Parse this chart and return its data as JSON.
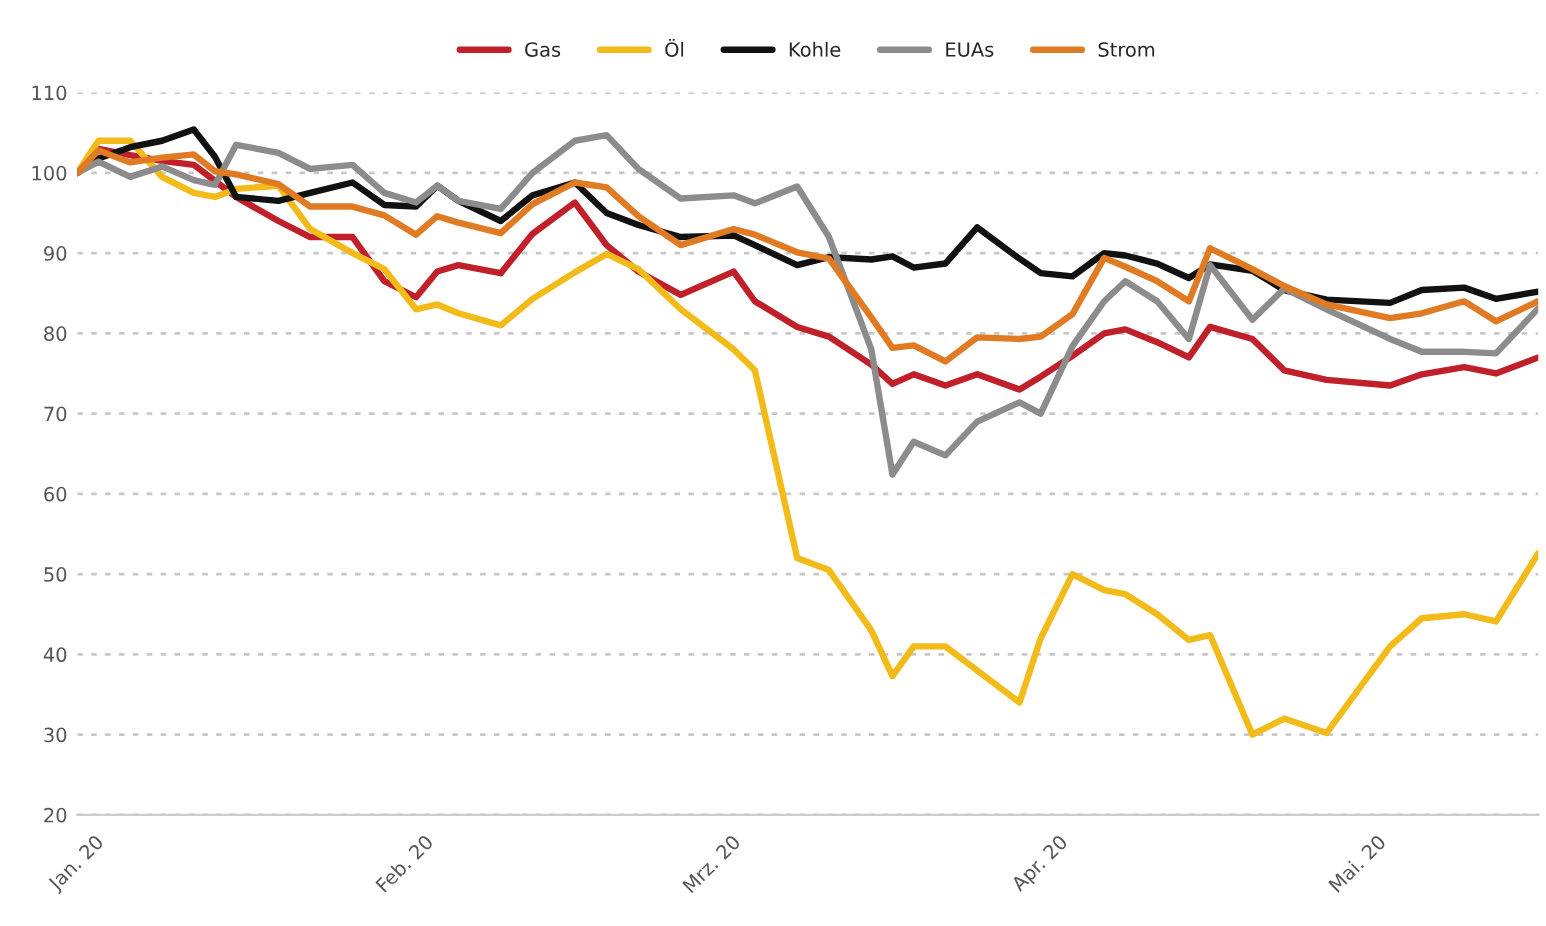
{
  "chart_data": {
    "type": "line",
    "x": [
      "2020-01-01",
      "2020-01-03",
      "2020-01-06",
      "2020-01-09",
      "2020-01-12",
      "2020-01-14",
      "2020-01-16",
      "2020-01-20",
      "2020-01-23",
      "2020-01-27",
      "2020-01-30",
      "2020-02-02",
      "2020-02-04",
      "2020-02-06",
      "2020-02-10",
      "2020-02-13",
      "2020-02-17",
      "2020-02-20",
      "2020-02-23",
      "2020-02-27",
      "2020-03-03",
      "2020-03-05",
      "2020-03-09",
      "2020-03-12",
      "2020-03-16",
      "2020-03-18",
      "2020-03-20",
      "2020-03-23",
      "2020-03-26",
      "2020-03-30",
      "2020-04-01",
      "2020-04-04",
      "2020-04-07",
      "2020-04-09",
      "2020-04-12",
      "2020-04-15",
      "2020-04-17",
      "2020-04-21",
      "2020-04-24",
      "2020-04-28",
      "2020-05-04",
      "2020-05-07",
      "2020-05-11",
      "2020-05-14",
      "2020-05-18"
    ],
    "series": [
      {
        "name": "Gas",
        "color": "#c0202a",
        "values": [
          100,
          103,
          102.2,
          101.5,
          101,
          99,
          97,
          94,
          92,
          92,
          86.5,
          84.5,
          87.7,
          88.5,
          87.5,
          92.4,
          96.3,
          91,
          87.7,
          84.8,
          87.7,
          84,
          80.8,
          79.6,
          76.1,
          73.7,
          74.9,
          73.5,
          74.9,
          73,
          74.6,
          77.2,
          80,
          80.5,
          78.9,
          77,
          80.8,
          79.3,
          75.4,
          74.2,
          73.5,
          74.9,
          75.8,
          75,
          77
        ]
      },
      {
        "name": "Öl",
        "color": "#f2bb1a",
        "values": [
          100,
          104,
          104,
          99.5,
          97.5,
          97,
          98,
          98.4,
          93,
          90,
          88,
          83,
          83.6,
          82.5,
          81,
          84.3,
          87.6,
          89.9,
          88,
          83,
          78,
          75.4,
          52,
          50.5,
          43,
          37.3,
          41,
          41,
          38,
          34,
          42,
          50,
          48,
          47.5,
          45,
          41.8,
          42.4,
          30,
          32,
          30.2,
          41,
          44.5,
          45,
          44.1,
          52.6
        ]
      },
      {
        "name": "Kohle",
        "color": "#111111",
        "values": [
          100,
          101.8,
          103.2,
          104,
          105.4,
          102,
          97,
          96.5,
          97.5,
          98.8,
          96,
          95.8,
          98.4,
          96.5,
          94,
          97.2,
          98.8,
          95,
          93.5,
          92,
          92.2,
          91,
          88.5,
          89.5,
          89.2,
          89.6,
          88.2,
          88.7,
          93.2,
          89.3,
          87.5,
          87.1,
          90,
          89.7,
          88.7,
          86.9,
          88.6,
          87.8,
          85.4,
          84.2,
          83.8,
          85.4,
          85.7,
          84.3,
          85.2
        ]
      },
      {
        "name": "EUAs",
        "color": "#8c8c8c",
        "values": [
          100,
          101.4,
          99.5,
          100.8,
          99.1,
          98.5,
          103.5,
          102.5,
          100.5,
          101,
          97.5,
          96.3,
          98.4,
          96.5,
          95.5,
          100,
          104,
          104.7,
          100.5,
          96.8,
          97.2,
          96.2,
          98.3,
          92,
          78,
          62.4,
          66.5,
          64.8,
          69,
          71.4,
          70,
          78.4,
          84,
          86.5,
          84,
          79.3,
          88.5,
          81.7,
          85.6,
          83,
          79.3,
          77.7,
          77.7,
          77.5,
          83.1
        ]
      },
      {
        "name": "Strom",
        "color": "#e07b24",
        "values": [
          100,
          102.8,
          101.3,
          101.9,
          102.3,
          100.2,
          99.8,
          98.6,
          95.8,
          95.8,
          94.7,
          92.3,
          94.6,
          93.8,
          92.5,
          96.1,
          98.8,
          98.2,
          94.6,
          91,
          93,
          92.3,
          90.1,
          89.3,
          82,
          78.2,
          78.5,
          76.5,
          79.5,
          79.3,
          79.6,
          82.4,
          89.4,
          88.3,
          86.5,
          84,
          90.6,
          88,
          85.9,
          83.6,
          81.9,
          82.5,
          84,
          81.5,
          84
        ]
      }
    ],
    "xlim": [
      "2020-01-01",
      "2020-05-18"
    ],
    "xticks": [
      {
        "value": "2020-01-01",
        "label": "Jan. 20"
      },
      {
        "value": "2020-02-01",
        "label": "Feb. 20"
      },
      {
        "value": "2020-03-01",
        "label": "Mrz. 20"
      },
      {
        "value": "2020-04-01",
        "label": "Apr. 20"
      },
      {
        "value": "2020-05-01",
        "label": "Mai. 20"
      }
    ],
    "ylim": [
      20,
      110
    ],
    "yticks": [
      20,
      30,
      40,
      50,
      60,
      70,
      80,
      90,
      100,
      110
    ],
    "grid": "y",
    "legend": "top",
    "line_style": "solid"
  }
}
